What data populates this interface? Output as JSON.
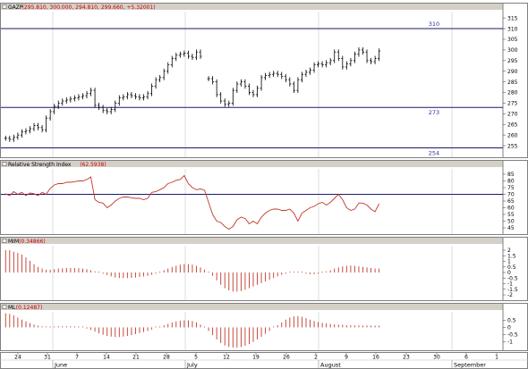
{
  "chart_data": [
    {
      "type": "ohlc",
      "title": "GAZP",
      "header_values": "(295.810, 300.000, 294.810, 299.660, +5.32001)",
      "ylim": [
        250,
        318
      ],
      "y_ticks": [
        255,
        260,
        265,
        270,
        275,
        280,
        285,
        290,
        295,
        300,
        305,
        310,
        315
      ],
      "hlines": [
        {
          "value": 310,
          "label": "310"
        },
        {
          "value": 273,
          "label": "273"
        },
        {
          "value": 254,
          "label": "254"
        }
      ],
      "close": [
        258.5,
        258,
        259,
        260,
        261.5,
        262,
        263,
        264.5,
        263.5,
        262.5,
        268,
        271,
        273.5,
        275,
        276,
        276.5,
        277,
        277.5,
        278,
        278.5,
        279.5,
        281,
        274,
        273,
        271.5,
        271,
        272,
        275,
        277.5,
        278,
        279,
        278.5,
        278,
        277.5,
        278,
        279.5,
        283,
        286,
        287,
        290,
        293,
        296,
        297.5,
        298,
        298.5,
        297,
        296.5,
        299,
        297,
        null,
        286.5,
        285,
        279,
        276,
        274.5,
        275,
        281,
        284,
        285,
        283,
        280,
        279,
        282,
        287,
        288,
        288.5,
        289,
        288.5,
        287.5,
        286,
        284,
        281,
        286,
        288.5,
        289.5,
        290.5,
        293,
        293.5,
        293,
        294,
        295,
        299,
        296,
        292,
        293.5,
        295,
        298,
        300,
        299,
        295,
        294.5,
        296,
        299.5
      ]
    },
    {
      "type": "line",
      "title": "Relative Strength Index",
      "header_values": "(62.5938)",
      "ylim": [
        41,
        89
      ],
      "y_ticks": [
        45,
        50,
        55,
        60,
        65,
        70,
        75,
        80,
        85
      ],
      "hlines": [
        {
          "value": 70
        }
      ],
      "series": [
        {
          "values": [
            70.5,
            69,
            72,
            70,
            71.5,
            69,
            71,
            70.5,
            69,
            71.5,
            70,
            74.5,
            77,
            78,
            78,
            79,
            79,
            79.5,
            80,
            80,
            81,
            83,
            66,
            64,
            63.5,
            60,
            62,
            65,
            67,
            68,
            68,
            67.5,
            67,
            67,
            66,
            67,
            71.5,
            72,
            73.5,
            75,
            78,
            79,
            80.5,
            81,
            84,
            78,
            75,
            73.5,
            74,
            73,
            64,
            55,
            50,
            49,
            46,
            44,
            46,
            51,
            53,
            52,
            48,
            50,
            48,
            53,
            56,
            58,
            59,
            59,
            58,
            58,
            59,
            56,
            50,
            56,
            58,
            60,
            61,
            63,
            64,
            62,
            64,
            67,
            70,
            66,
            60,
            58,
            59,
            63.5,
            63.5,
            62,
            59,
            57,
            63
          ]
        }
      ]
    },
    {
      "type": "bar",
      "title": "MIM",
      "header_values": "(0.34866)",
      "ylim": [
        -2.4,
        2.4
      ],
      "y_ticks": [
        -2.0,
        -1.5,
        -1.0,
        -0.5,
        0.0,
        0.5,
        1.0,
        1.5,
        2.0
      ],
      "values": [
        2.0,
        2.0,
        1.85,
        1.75,
        1.6,
        1.35,
        1.05,
        0.75,
        0.5,
        0.35,
        0.25,
        0.25,
        0.3,
        0.35,
        0.38,
        0.4,
        0.4,
        0.4,
        0.38,
        0.35,
        0.3,
        0.2,
        0.1,
        0.0,
        -0.1,
        -0.22,
        -0.35,
        -0.45,
        -0.5,
        -0.5,
        -0.5,
        -0.48,
        -0.45,
        -0.4,
        -0.35,
        -0.3,
        -0.2,
        -0.1,
        0.05,
        0.2,
        0.35,
        0.5,
        0.6,
        0.7,
        0.75,
        0.75,
        0.7,
        0.6,
        0.45,
        0.25,
        0.0,
        -0.3,
        -0.7,
        -1.1,
        -1.4,
        -1.6,
        -1.7,
        -1.7,
        -1.65,
        -1.55,
        -1.4,
        -1.25,
        -1.1,
        -0.95,
        -0.8,
        -0.65,
        -0.5,
        -0.35,
        -0.2,
        -0.1,
        0.0,
        0.05,
        0.05,
        0.0,
        -0.1,
        -0.15,
        -0.15,
        -0.1,
        0.0,
        0.1,
        0.2,
        0.35,
        0.45,
        0.55,
        0.6,
        0.62,
        0.6,
        0.55,
        0.5,
        0.45,
        0.4,
        0.35,
        0.35
      ]
    },
    {
      "type": "bar",
      "title": "ML",
      "header_values": "(0.12487)",
      "ylim": [
        -1.55,
        1.1
      ],
      "y_ticks": [
        -1.0,
        -0.5,
        0.0,
        0.5
      ],
      "values": [
        1.0,
        0.95,
        0.85,
        0.7,
        0.55,
        0.42,
        0.3,
        0.2,
        0.12,
        0.08,
        0.05,
        0.05,
        0.06,
        0.08,
        0.08,
        0.08,
        0.08,
        0.07,
        0.05,
        0.0,
        -0.08,
        -0.18,
        -0.3,
        -0.42,
        -0.52,
        -0.6,
        -0.65,
        -0.68,
        -0.68,
        -0.65,
        -0.6,
        -0.55,
        -0.48,
        -0.4,
        -0.33,
        -0.25,
        -0.15,
        -0.05,
        0.05,
        0.15,
        0.25,
        0.35,
        0.42,
        0.48,
        0.5,
        0.5,
        0.45,
        0.35,
        0.2,
        0.0,
        -0.25,
        -0.55,
        -0.85,
        -1.1,
        -1.28,
        -1.38,
        -1.42,
        -1.42,
        -1.38,
        -1.3,
        -1.18,
        -1.02,
        -0.85,
        -0.66,
        -0.45,
        -0.25,
        -0.05,
        0.15,
        0.35,
        0.55,
        0.7,
        0.78,
        0.8,
        0.75,
        0.65,
        0.55,
        0.45,
        0.38,
        0.32,
        0.28,
        0.25,
        0.22,
        0.2,
        0.18,
        0.16,
        0.15,
        0.14,
        0.14,
        0.13,
        0.13,
        0.13,
        0.12,
        0.12
      ]
    }
  ],
  "x_axis": {
    "day_ticks": [
      "24",
      "31",
      "7",
      "14",
      "21",
      "28",
      "5",
      "12",
      "19",
      "26",
      "2",
      "9",
      "16",
      "23",
      "30",
      "6",
      "1"
    ],
    "month_labels": [
      "June",
      "July",
      "August",
      "September"
    ]
  },
  "colors": {
    "header_bg": "#d4d0c8",
    "price_bar": "#000000",
    "rsi_line": "#c0392b",
    "hist_bar": "#c0392b",
    "hline": "#1a1a6e",
    "hline_label": "#3030a0",
    "value_text": "#cc0000"
  }
}
